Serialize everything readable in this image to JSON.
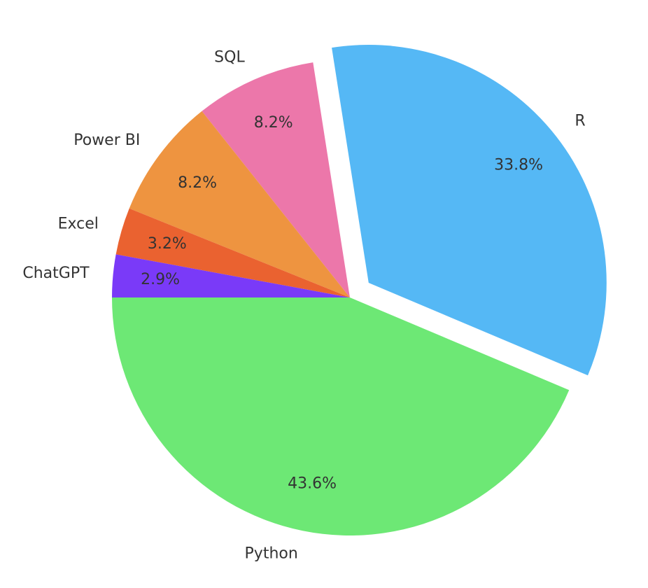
{
  "chart_data": {
    "type": "pie",
    "categories": [
      "Python",
      "R",
      "SQL",
      "Power BI",
      "Excel",
      "ChatGPT"
    ],
    "values": [
      43.6,
      33.8,
      8.2,
      8.2,
      3.2,
      2.9
    ],
    "value_labels": [
      "43.6%",
      "33.8%",
      "8.2%",
      "8.2%",
      "3.2%",
      "2.9%"
    ],
    "colors": [
      "#6de875",
      "#55b8f5",
      "#ec77aa",
      "#ee9440",
      "#ea6230",
      "#7a3af8"
    ],
    "explode": [
      0,
      0.1,
      0,
      0,
      0,
      0
    ],
    "startangle": 180
  }
}
